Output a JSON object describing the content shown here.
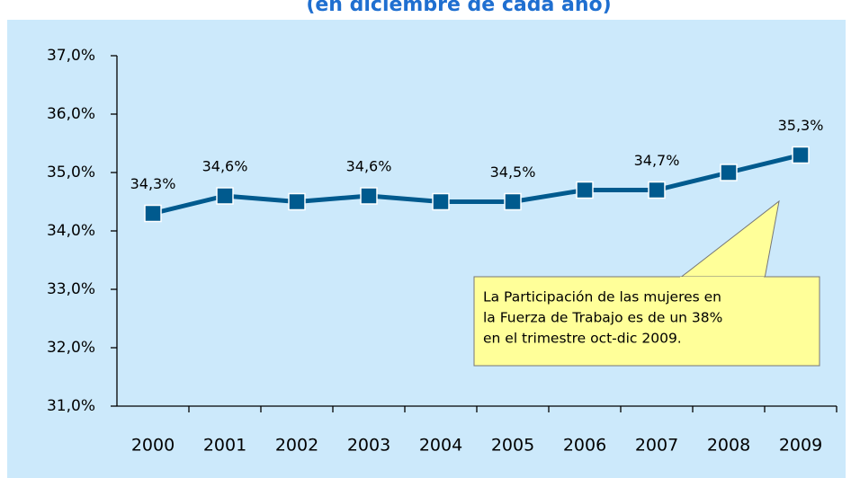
{
  "chart_data": {
    "type": "line",
    "subtitle": "(en diciembre de cada año)",
    "categories": [
      "2000",
      "2001",
      "2002",
      "2003",
      "2004",
      "2005",
      "2006",
      "2007",
      "2008",
      "2009"
    ],
    "values": [
      34.3,
      34.6,
      34.5,
      34.6,
      34.5,
      34.5,
      34.7,
      34.7,
      35.0,
      35.3
    ],
    "value_labels": [
      "34,3%",
      "34,6%",
      null,
      "34,6%",
      null,
      "34,5%",
      null,
      "34,7%",
      null,
      "35,3%"
    ],
    "color": "#005a8e",
    "ylim": [
      31,
      37
    ],
    "yticks": [
      {
        "value": 31,
        "label": "31,0%"
      },
      {
        "value": 32,
        "label": "32,0%"
      },
      {
        "value": 33,
        "label": "33,0%"
      },
      {
        "value": 34,
        "label": "34,0%"
      },
      {
        "value": 35,
        "label": "35,0%"
      },
      {
        "value": 36,
        "label": "36,0%"
      },
      {
        "value": 37,
        "label": "37,0%"
      }
    ],
    "annotation": [
      "La Participación de las mujeres en",
      "la Fuerza de Trabajo es de un 38%",
      "en el trimestre oct-dic 2009."
    ]
  }
}
